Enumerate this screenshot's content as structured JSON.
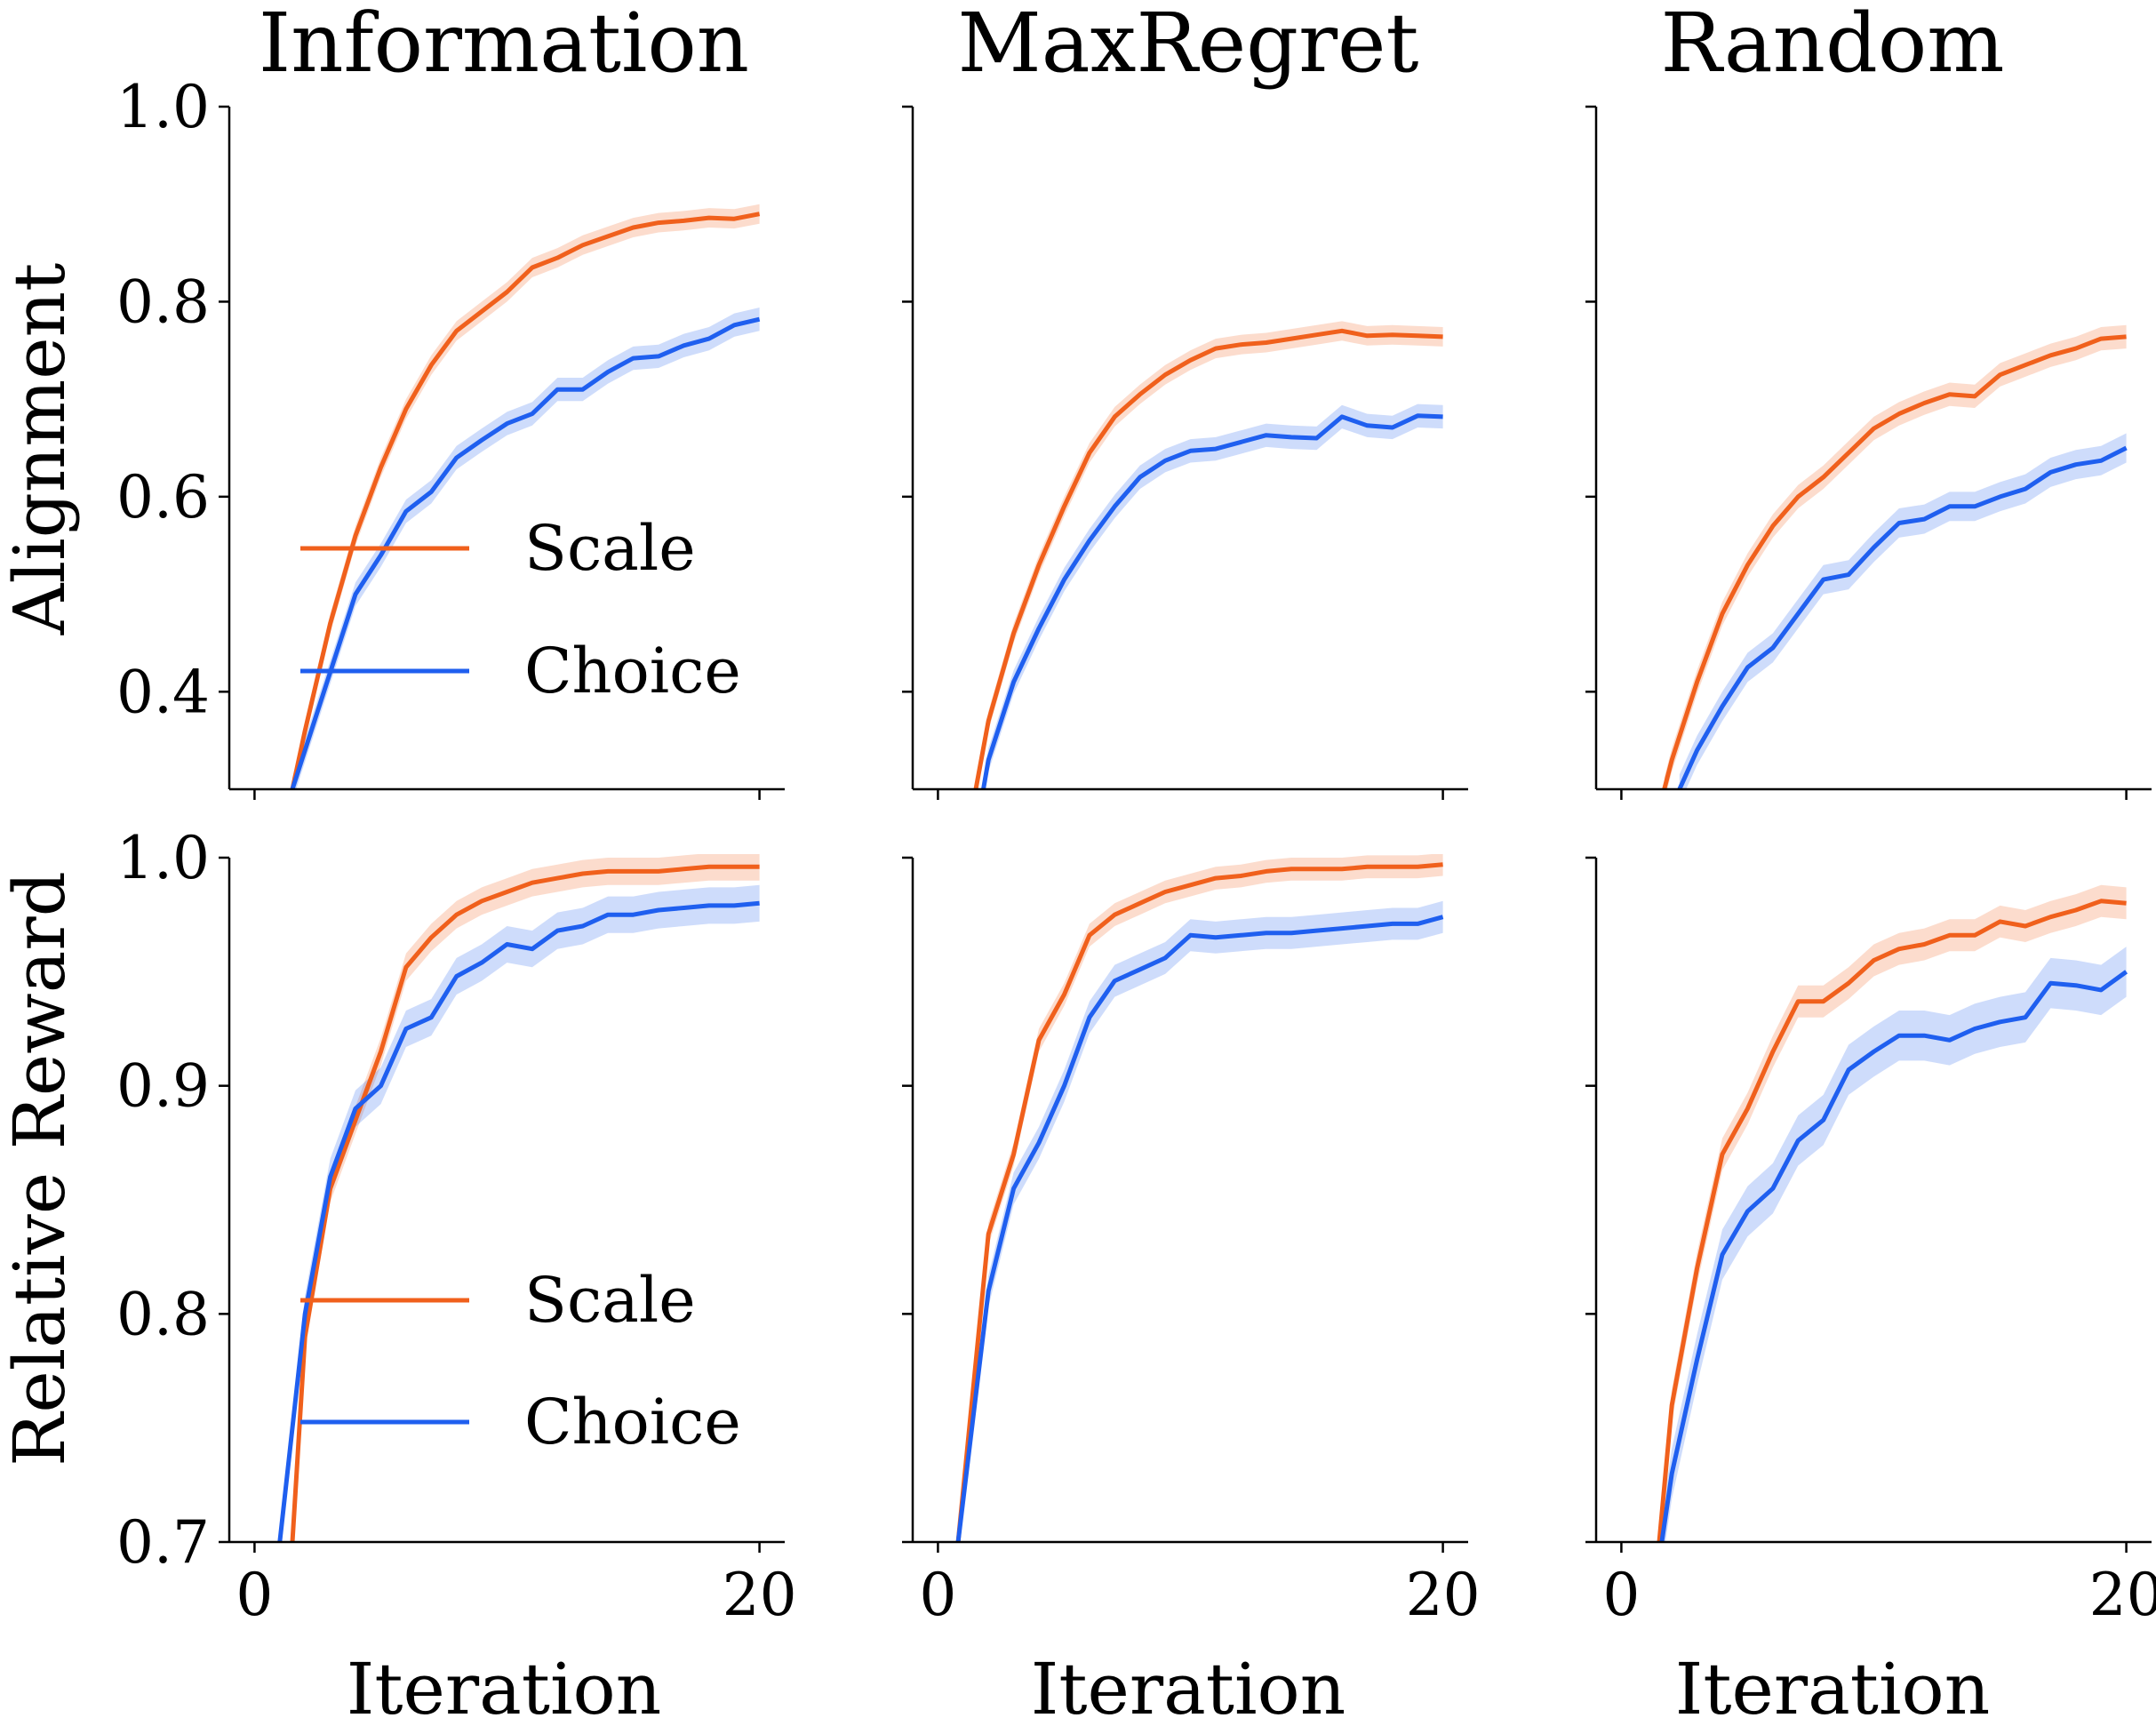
{
  "figure": {
    "columns": [
      "Information",
      "MaxRegret",
      "Random"
    ],
    "rows": [
      "Alignment",
      "Relative Reward"
    ],
    "xlabel": "Iteration",
    "colors": {
      "Scale": "#f0601c",
      "Choice": "#1f5fef"
    },
    "legend": [
      "Scale",
      "Choice"
    ]
  },
  "chart_data": [
    {
      "type": "line",
      "title": "Information",
      "row": "Alignment",
      "ylabel": "Alignment",
      "xlabel": "",
      "xlim": [
        -1,
        21
      ],
      "ylim": [
        0.3,
        1.0
      ],
      "xticks": [
        0,
        20
      ],
      "yticks": [
        0.4,
        0.6,
        0.8,
        1.0
      ],
      "ytick_labels": [
        "0.4",
        "0.6",
        "0.8",
        "1.0"
      ],
      "show_xtick_labels": false,
      "show_ytick_labels": true,
      "legend": true,
      "legend_location": "lower-center",
      "series": [
        {
          "name": "Scale",
          "band": 0.01,
          "x": [
            1.5,
            2,
            3,
            4,
            5,
            6,
            7,
            8,
            9,
            10,
            11,
            12,
            13,
            14,
            15,
            16,
            17,
            18,
            19,
            20
          ],
          "y": [
            0.3,
            0.36,
            0.47,
            0.56,
            0.63,
            0.69,
            0.735,
            0.77,
            0.79,
            0.81,
            0.835,
            0.845,
            0.858,
            0.867,
            0.876,
            0.881,
            0.883,
            0.886,
            0.885,
            0.89
          ]
        },
        {
          "name": "Choice",
          "band": 0.012,
          "x": [
            1.5,
            2,
            3,
            4,
            5,
            6,
            7,
            8,
            9,
            10,
            11,
            12,
            13,
            14,
            15,
            16,
            17,
            18,
            19,
            20
          ],
          "y": [
            0.3,
            0.34,
            0.42,
            0.5,
            0.54,
            0.585,
            0.605,
            0.64,
            0.658,
            0.675,
            0.685,
            0.71,
            0.71,
            0.728,
            0.742,
            0.744,
            0.755,
            0.762,
            0.776,
            0.782
          ]
        }
      ]
    },
    {
      "type": "line",
      "title": "MaxRegret",
      "row": "Alignment",
      "ylabel": "",
      "xlabel": "",
      "xlim": [
        -1,
        21
      ],
      "ylim": [
        0.3,
        1.0
      ],
      "xticks": [
        0,
        20
      ],
      "yticks": [
        0.4,
        0.6,
        0.8,
        1.0
      ],
      "ytick_labels": [
        "0.4",
        "0.6",
        "0.8",
        "1.0"
      ],
      "show_xtick_labels": false,
      "show_ytick_labels": false,
      "legend": false,
      "legend_location": "",
      "series": [
        {
          "name": "Scale",
          "band": 0.01,
          "x": [
            1.5,
            2,
            3,
            4,
            5,
            6,
            7,
            8,
            9,
            10,
            11,
            12,
            13,
            14,
            15,
            16,
            17,
            18,
            19,
            20
          ],
          "y": [
            0.3,
            0.37,
            0.46,
            0.53,
            0.59,
            0.645,
            0.682,
            0.705,
            0.725,
            0.74,
            0.752,
            0.756,
            0.758,
            0.762,
            0.766,
            0.77,
            0.765,
            0.766,
            0.765,
            0.764
          ]
        },
        {
          "name": "Choice",
          "band": 0.012,
          "x": [
            1.8,
            2,
            3,
            4,
            5,
            6,
            7,
            8,
            9,
            10,
            11,
            12,
            13,
            14,
            15,
            16,
            17,
            18,
            19,
            20
          ],
          "y": [
            0.3,
            0.33,
            0.41,
            0.465,
            0.515,
            0.555,
            0.59,
            0.62,
            0.637,
            0.647,
            0.649,
            0.656,
            0.663,
            0.661,
            0.66,
            0.682,
            0.673,
            0.671,
            0.683,
            0.682
          ]
        }
      ]
    },
    {
      "type": "line",
      "title": "Random",
      "row": "Alignment",
      "ylabel": "",
      "xlabel": "",
      "xlim": [
        -1,
        21
      ],
      "ylim": [
        0.3,
        1.0
      ],
      "xticks": [
        0,
        20
      ],
      "yticks": [
        0.4,
        0.6,
        0.8,
        1.0
      ],
      "ytick_labels": [
        "0.4",
        "0.6",
        "0.8",
        "1.0"
      ],
      "show_xtick_labels": false,
      "show_ytick_labels": false,
      "legend": false,
      "legend_location": "",
      "series": [
        {
          "name": "Scale",
          "band": 0.012,
          "x": [
            1.7,
            2,
            3,
            4,
            5,
            6,
            7,
            8,
            9,
            10,
            11,
            12,
            13,
            14,
            15,
            16,
            17,
            18,
            19,
            20
          ],
          "y": [
            0.3,
            0.33,
            0.41,
            0.48,
            0.53,
            0.57,
            0.6,
            0.62,
            0.645,
            0.67,
            0.685,
            0.696,
            0.705,
            0.703,
            0.725,
            0.735,
            0.745,
            0.752,
            0.762,
            0.764
          ]
        },
        {
          "name": "Choice",
          "band": 0.015,
          "x": [
            2.3,
            3,
            4,
            5,
            6,
            7,
            8,
            9,
            10,
            11,
            12,
            13,
            14,
            15,
            16,
            17,
            18,
            19,
            20
          ],
          "y": [
            0.3,
            0.34,
            0.385,
            0.425,
            0.445,
            0.48,
            0.515,
            0.52,
            0.548,
            0.573,
            0.577,
            0.59,
            0.59,
            0.6,
            0.608,
            0.625,
            0.633,
            0.637,
            0.65
          ]
        }
      ]
    },
    {
      "type": "line",
      "title": "",
      "row": "Relative Reward",
      "ylabel": "Relative Reward",
      "xlabel": "Iteration",
      "xlim": [
        -1,
        21
      ],
      "ylim": [
        0.7,
        1.0
      ],
      "xticks": [
        0,
        20
      ],
      "yticks": [
        0.7,
        0.8,
        0.9,
        1.0
      ],
      "xtick_labels": [
        "0",
        "20"
      ],
      "ytick_labels": [
        "0.7",
        "0.8",
        "0.9",
        "1.0"
      ],
      "show_xtick_labels": true,
      "show_ytick_labels": true,
      "legend": true,
      "legend_location": "lower-center",
      "series": [
        {
          "name": "Scale",
          "band": 0.006,
          "x": [
            1.5,
            2,
            3,
            4,
            5,
            6,
            7,
            8,
            9,
            10,
            11,
            12,
            13,
            14,
            15,
            16,
            17,
            18,
            19,
            20
          ],
          "y": [
            0.7,
            0.79,
            0.855,
            0.885,
            0.915,
            0.952,
            0.965,
            0.975,
            0.981,
            0.985,
            0.989,
            0.991,
            0.993,
            0.994,
            0.994,
            0.994,
            0.995,
            0.996,
            0.996,
            0.996
          ]
        },
        {
          "name": "Choice",
          "band": 0.008,
          "x": [
            1,
            2,
            3,
            4,
            5,
            6,
            7,
            8,
            9,
            10,
            11,
            12,
            13,
            14,
            15,
            16,
            17,
            18,
            19,
            20
          ],
          "y": [
            0.7,
            0.8,
            0.86,
            0.89,
            0.9,
            0.925,
            0.93,
            0.948,
            0.954,
            0.962,
            0.96,
            0.968,
            0.97,
            0.975,
            0.975,
            0.977,
            0.978,
            0.979,
            0.979,
            0.98
          ]
        }
      ]
    },
    {
      "type": "line",
      "title": "",
      "row": "Relative Reward",
      "ylabel": "",
      "xlabel": "Iteration",
      "xlim": [
        -1,
        21
      ],
      "ylim": [
        0.7,
        1.0
      ],
      "xticks": [
        0,
        20
      ],
      "yticks": [
        0.7,
        0.8,
        0.9,
        1.0
      ],
      "xtick_labels": [
        "0",
        "20"
      ],
      "ytick_labels": [
        "0.7",
        "0.8",
        "0.9",
        "1.0"
      ],
      "show_xtick_labels": true,
      "show_ytick_labels": false,
      "legend": false,
      "legend_location": "",
      "series": [
        {
          "name": "Scale",
          "band": 0.005,
          "x": [
            0.8,
            2,
            3,
            4,
            5,
            6,
            7,
            8,
            9,
            10,
            11,
            12,
            13,
            14,
            15,
            16,
            17,
            18,
            19,
            20
          ],
          "y": [
            0.7,
            0.835,
            0.87,
            0.92,
            0.94,
            0.966,
            0.975,
            0.98,
            0.985,
            0.988,
            0.991,
            0.992,
            0.994,
            0.995,
            0.995,
            0.995,
            0.996,
            0.996,
            0.996,
            0.997
          ]
        },
        {
          "name": "Choice",
          "band": 0.007,
          "x": [
            0.8,
            2,
            3,
            4,
            5,
            6,
            7,
            8,
            9,
            10,
            11,
            12,
            13,
            14,
            15,
            16,
            17,
            18,
            19,
            20
          ],
          "y": [
            0.7,
            0.81,
            0.855,
            0.875,
            0.9,
            0.93,
            0.946,
            0.951,
            0.956,
            0.966,
            0.965,
            0.966,
            0.967,
            0.967,
            0.968,
            0.969,
            0.97,
            0.971,
            0.971,
            0.974
          ]
        }
      ]
    },
    {
      "type": "line",
      "title": "",
      "row": "Relative Reward",
      "ylabel": "",
      "xlabel": "Iteration",
      "xlim": [
        -1,
        21
      ],
      "ylim": [
        0.7,
        1.0
      ],
      "xticks": [
        0,
        20
      ],
      "yticks": [
        0.7,
        0.8,
        0.9,
        1.0
      ],
      "xtick_labels": [
        "0",
        "20"
      ],
      "ytick_labels": [
        "0.7",
        "0.8",
        "0.9",
        "1.0"
      ],
      "show_xtick_labels": true,
      "show_ytick_labels": false,
      "legend": false,
      "legend_location": "",
      "series": [
        {
          "name": "Scale",
          "band": 0.007,
          "x": [
            1.5,
            2,
            3,
            4,
            5,
            6,
            7,
            8,
            9,
            10,
            11,
            12,
            13,
            14,
            15,
            16,
            17,
            18,
            19,
            20
          ],
          "y": [
            0.7,
            0.76,
            0.82,
            0.87,
            0.89,
            0.915,
            0.937,
            0.937,
            0.945,
            0.955,
            0.96,
            0.962,
            0.966,
            0.966,
            0.972,
            0.97,
            0.974,
            0.977,
            0.981,
            0.98
          ]
        },
        {
          "name": "Choice",
          "band": 0.011,
          "x": [
            1.6,
            2,
            3,
            4,
            5,
            6,
            7,
            8,
            9,
            10,
            11,
            12,
            13,
            14,
            15,
            16,
            17,
            18,
            19,
            20
          ],
          "y": [
            0.7,
            0.73,
            0.78,
            0.826,
            0.845,
            0.855,
            0.876,
            0.885,
            0.907,
            0.915,
            0.922,
            0.922,
            0.92,
            0.925,
            0.928,
            0.93,
            0.945,
            0.944,
            0.942,
            0.95
          ]
        }
      ]
    }
  ]
}
